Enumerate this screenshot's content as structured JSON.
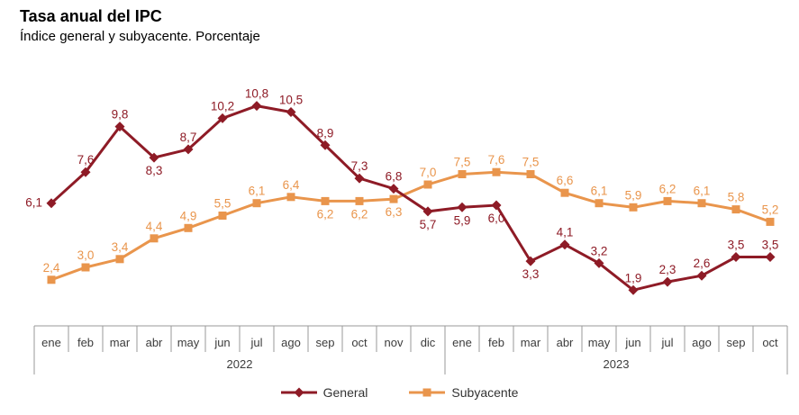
{
  "chart_data": {
    "type": "line",
    "title": "Tasa anual del IPC",
    "subtitle": "Índice general y subyacente. Porcentaje",
    "x_groups": [
      {
        "year": "2022",
        "months": [
          "ene",
          "feb",
          "mar",
          "abr",
          "may",
          "jun",
          "jul",
          "ago",
          "sep",
          "oct",
          "nov",
          "dic"
        ]
      },
      {
        "year": "2023",
        "months": [
          "ene",
          "feb",
          "mar",
          "abr",
          "may",
          "jun",
          "jul",
          "ago",
          "sep",
          "oct"
        ]
      }
    ],
    "series": [
      {
        "name": "General",
        "color": "#8E1B26",
        "marker": "diamond",
        "values": [
          6.1,
          7.6,
          9.8,
          8.3,
          8.7,
          10.2,
          10.8,
          10.5,
          8.9,
          7.3,
          6.8,
          5.7,
          5.9,
          6.0,
          3.3,
          4.1,
          3.2,
          1.9,
          2.3,
          2.6,
          3.5,
          3.5
        ],
        "labels_below": [
          3,
          11,
          12,
          13,
          14
        ],
        "labels_left": [
          0
        ]
      },
      {
        "name": "Subyacente",
        "color": "#E9954C",
        "marker": "square",
        "values": [
          2.4,
          3.0,
          3.4,
          4.4,
          4.9,
          5.5,
          6.1,
          6.4,
          6.2,
          6.2,
          6.3,
          7.0,
          7.5,
          7.6,
          7.5,
          6.6,
          6.1,
          5.9,
          6.2,
          6.1,
          5.8,
          5.2
        ],
        "labels_below": [
          8,
          9,
          10
        ],
        "labels_left": []
      }
    ],
    "ylim": [
      0,
      12
    ],
    "grid": false,
    "data_labels": true,
    "decimal_separator": ",",
    "legend_position": "bottom-center",
    "axis_color": "#9A9A9A",
    "tick_label_color": "#3C3C3C"
  }
}
